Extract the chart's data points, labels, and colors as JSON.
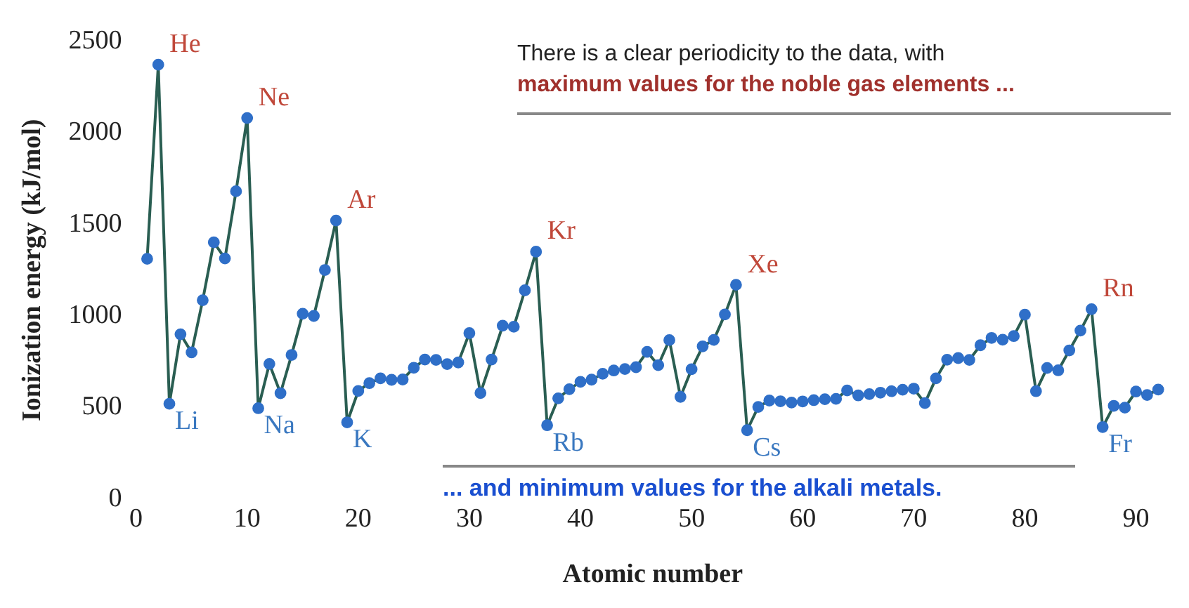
{
  "chart_data": {
    "type": "line",
    "xlabel": "Atomic number",
    "ylabel": "Ionization energy (kJ/mol)",
    "xlim": [
      0,
      93
    ],
    "xticks": [
      0,
      10,
      20,
      30,
      40,
      50,
      60,
      70,
      80,
      90
    ],
    "ylim": [
      0,
      2500
    ],
    "yticks": [
      0,
      500,
      1000,
      1500,
      2000,
      2500
    ],
    "x": [
      1,
      2,
      3,
      4,
      5,
      6,
      7,
      8,
      9,
      10,
      11,
      12,
      13,
      14,
      15,
      16,
      17,
      18,
      19,
      20,
      21,
      22,
      23,
      24,
      25,
      26,
      27,
      28,
      29,
      30,
      31,
      32,
      33,
      34,
      35,
      36,
      37,
      38,
      39,
      40,
      41,
      42,
      43,
      44,
      45,
      46,
      47,
      48,
      49,
      50,
      51,
      52,
      53,
      54,
      55,
      56,
      57,
      58,
      59,
      60,
      61,
      62,
      63,
      64,
      65,
      66,
      67,
      68,
      69,
      70,
      71,
      72,
      73,
      74,
      75,
      76,
      77,
      78,
      79,
      80,
      81,
      82,
      83,
      84,
      85,
      86,
      87,
      88,
      89,
      90,
      91,
      92
    ],
    "series": [
      {
        "color": "#2a5e52",
        "values": [
          1312,
          2372,
          520,
          900,
          801,
          1086,
          1402,
          1314,
          1681,
          2081,
          496,
          738,
          578,
          787,
          1012,
          1000,
          1251,
          1521,
          419,
          590,
          633,
          659,
          651,
          653,
          717,
          762,
          760,
          737,
          746,
          906,
          579,
          762,
          947,
          941,
          1140,
          1351,
          403,
          550,
          600,
          640,
          652,
          684,
          702,
          710,
          720,
          804,
          731,
          868,
          558,
          709,
          834,
          869,
          1008,
          1170,
          376,
          503,
          538,
          534,
          527,
          533,
          540,
          545,
          547,
          593,
          566,
          573,
          581,
          589,
          597,
          603,
          524,
          659,
          761,
          770,
          760,
          840,
          880,
          870,
          890,
          1007,
          589,
          716,
          703,
          812,
          920,
          1037,
          393,
          509,
          499,
          587,
          568,
          598
        ]
      }
    ],
    "marker": "circle",
    "grid": false,
    "legend": false,
    "annotations": [
      "There is a clear periodicity to the data, with",
      "maximum values for the noble gas elements ...",
      "... and minimum values for the alkali metals.",
      {
        "text": "He",
        "x": 2,
        "y": 2372
      },
      {
        "text": "Ne",
        "x": 10,
        "y": 2081
      },
      {
        "text": "Ar",
        "x": 18,
        "y": 1521
      },
      {
        "text": "Kr",
        "x": 36,
        "y": 1351
      },
      {
        "text": "Xe",
        "x": 54,
        "y": 1170
      },
      {
        "text": "Rn",
        "x": 86,
        "y": 1037
      },
      {
        "text": "Li",
        "x": 3,
        "y": 520
      },
      {
        "text": "Na",
        "x": 11,
        "y": 496
      },
      {
        "text": "K",
        "x": 19,
        "y": 419
      },
      {
        "text": "Rb",
        "x": 37,
        "y": 403
      },
      {
        "text": "Cs",
        "x": 55,
        "y": 376
      },
      {
        "text": "Fr",
        "x": 87,
        "y": 393
      }
    ]
  }
}
